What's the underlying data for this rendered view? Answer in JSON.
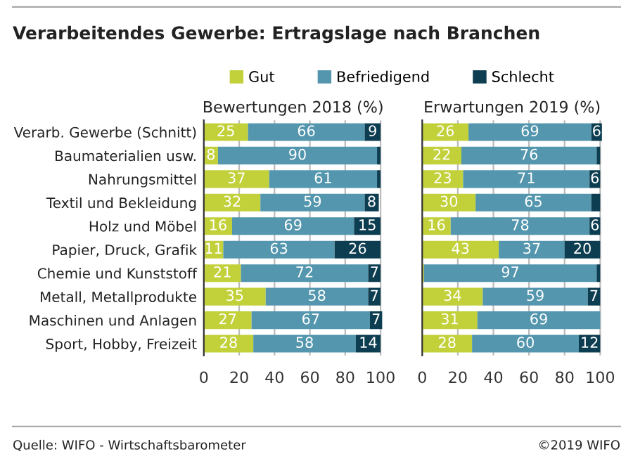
{
  "chart_data": [
    {
      "type": "bar",
      "orientation": "horizontal",
      "stacked": true,
      "title": "Verarbeitendes Gewerbe: Ertragslage nach Branchen",
      "subtitle": "Bewertungen 2018 (%)",
      "categories": [
        "Verarb. Gewerbe (Schnitt)",
        "Baumaterialien usw.",
        "Nahrungsmittel",
        "Textil und Bekleidung",
        "Holz und Möbel",
        "Papier, Druck, Grafik",
        "Chemie und Kunststoff",
        "Metall, Metallprodukte",
        "Maschinen und Anlagen",
        "Sport, Hobby, Freizeit"
      ],
      "series": [
        {
          "name": "Gut",
          "color": "#c2d13a",
          "values": [
            25,
            8,
            37,
            32,
            16,
            11,
            21,
            35,
            27,
            28
          ],
          "value_labels": [
            "25",
            "8",
            "37",
            "32",
            "16",
            "11",
            "21",
            "35",
            "27",
            "28"
          ]
        },
        {
          "name": "Befriedigend",
          "color": "#5396ae",
          "values": [
            66,
            90,
            61,
            59,
            69,
            63,
            72,
            58,
            67,
            58
          ],
          "value_labels": [
            "66",
            "90",
            "61",
            "59",
            "69",
            "63",
            "72",
            "58",
            "67",
            "58"
          ]
        },
        {
          "name": "Schlecht",
          "color": "#0d3d50",
          "values": [
            9,
            2,
            2,
            8,
            15,
            26,
            7,
            7,
            7,
            14
          ],
          "value_labels": [
            "9",
            null,
            null,
            "8",
            "15",
            "26",
            "7",
            "7",
            "7",
            "14"
          ]
        }
      ],
      "xlim": [
        0,
        101
      ],
      "xticks": [
        0,
        20,
        40,
        60,
        80,
        100
      ],
      "grid": "x",
      "legend": "top",
      "annotations": [
        "Quelle: WIFO - Wirtschaftsbarometer",
        "©2019 WIFO"
      ]
    },
    {
      "type": "bar",
      "orientation": "horizontal",
      "stacked": true,
      "subtitle": "Erwartungen 2019 (%)",
      "series": [
        {
          "color": "#c2d13a",
          "values": [
            26,
            22,
            23,
            30,
            16,
            43,
            1,
            34,
            31,
            28
          ],
          "value_labels": [
            "26",
            "22",
            "23",
            "30",
            "16",
            "43",
            null,
            "34",
            "31",
            "28"
          ]
        },
        {
          "color": "#5396ae",
          "values": [
            69,
            76,
            71,
            65,
            78,
            37,
            97,
            59,
            69,
            60
          ],
          "value_labels": [
            "69",
            "76",
            "71",
            "65",
            "78",
            "37",
            "97",
            "59",
            "69",
            "60"
          ]
        },
        {
          "color": "#0d3d50",
          "values": [
            6,
            2,
            6,
            5,
            6,
            20,
            2,
            7,
            0,
            12
          ],
          "value_labels": [
            "6",
            null,
            "6",
            null,
            "6",
            "20",
            null,
            "7",
            null,
            "12"
          ]
        }
      ],
      "xlim": [
        0,
        101
      ],
      "xticks": [
        0,
        20,
        40,
        60,
        80,
        100
      ],
      "grid": "x",
      "tick_labels": "x"
    }
  ]
}
